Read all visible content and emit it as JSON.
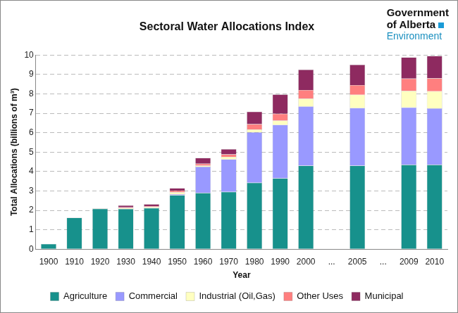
{
  "chart_data": {
    "type": "bar",
    "title": "Sectoral Water Allocations Index",
    "annotations": [
      "Government",
      "of Alberta",
      "Environment"
    ],
    "x_label": "Year",
    "y_label": "Total Allocations (billions of m³)",
    "categories": [
      "1900",
      "1910",
      "1920",
      "1930",
      "1940",
      "1950",
      "1960",
      "1970",
      "1980",
      "1990",
      "2000",
      "...",
      "2005",
      "...",
      "2009",
      "2010"
    ],
    "series": [
      {
        "name": "Agriculture",
        "color": "#17918c",
        "values": [
          0.27,
          1.62,
          2.08,
          2.07,
          2.12,
          2.78,
          2.9,
          2.95,
          3.42,
          3.65,
          4.3,
          null,
          4.3,
          null,
          4.35,
          4.35
        ]
      },
      {
        "name": "Commercial",
        "color": "#9999ff",
        "values": [
          0,
          0,
          0,
          0,
          0,
          0.05,
          1.35,
          1.68,
          2.6,
          2.75,
          3.05,
          null,
          2.97,
          null,
          2.95,
          2.9
        ]
      },
      {
        "name": "Industrial (Oil,Gas)",
        "color": "#ffffc0",
        "values": [
          0,
          0,
          0.02,
          0.05,
          0.05,
          0.1,
          0.05,
          0.12,
          0.15,
          0.22,
          0.4,
          null,
          0.68,
          null,
          0.85,
          0.88
        ]
      },
      {
        "name": "Other Uses",
        "color": "#ff7f7f",
        "values": [
          0,
          0,
          0,
          0.03,
          0.05,
          0.08,
          0.1,
          0.13,
          0.27,
          0.35,
          0.45,
          null,
          0.5,
          null,
          0.63,
          0.67
        ]
      },
      {
        "name": "Municipal",
        "color": "#8e2a60",
        "values": [
          0,
          0,
          0.02,
          0.1,
          0.1,
          0.13,
          0.3,
          0.27,
          0.64,
          1.0,
          1.05,
          null,
          1.05,
          null,
          1.1,
          1.15
        ]
      }
    ],
    "ylim": [
      0,
      10
    ],
    "yticks": [
      0,
      1,
      2,
      3,
      4,
      5,
      6,
      7,
      8,
      9,
      10
    ],
    "grid": true,
    "legend": "bottom",
    "stacked": true
  }
}
